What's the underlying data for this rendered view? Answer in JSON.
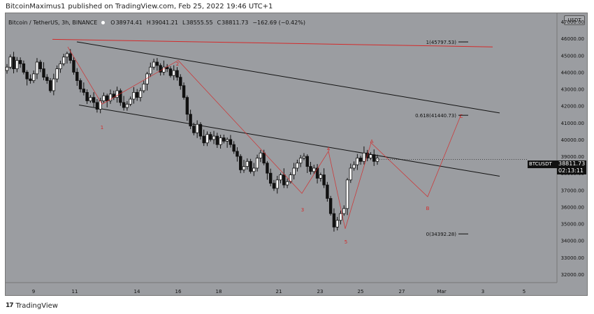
{
  "header": {
    "author": "BitcoinMaximus1",
    "published": "published on TradingView.com, Feb 25, 2022 19:46 UTC+1"
  },
  "legend": {
    "pair": "Bitcoin / TetherUS, 3h, BINANCE",
    "open_label": "O",
    "open": "38974.41",
    "high_label": "H",
    "high": "39041.21",
    "low_label": "L",
    "low": "38555.55",
    "close_label": "C",
    "close": "38811.73",
    "change": "−162.69 (−0.42%)"
  },
  "currency": "USDT",
  "symbol_tag": "BTCUSDT",
  "last_price": "38811.73",
  "countdown": "02:13:11",
  "footer": {
    "brand": "TradingView"
  },
  "colors": {
    "background": "#9b9da1",
    "candle": "#111111",
    "trendline": "#111111",
    "resistance": "#d42a2a",
    "wave": "#d42a2a"
  },
  "chart_data": {
    "type": "candlestick",
    "yaxis": {
      "ticks": [
        "47000.00",
        "46000.00",
        "45000.00",
        "44000.00",
        "43000.00",
        "42000.00",
        "41000.00",
        "40000.00",
        "39000.00",
        "38000.00",
        "37000.00",
        "36000.00",
        "35000.00",
        "34000.00",
        "33000.00",
        "32000.00"
      ],
      "range": [
        31500,
        47500
      ]
    },
    "xaxis": {
      "ticks": [
        "9",
        "11",
        "14",
        "16",
        "18",
        "21",
        "23",
        "25",
        "27",
        "Mar",
        "3",
        "5"
      ]
    },
    "fib_levels": [
      {
        "label": "1(45797.53)",
        "value": 45797.53
      },
      {
        "label": "0.618(41440.73)",
        "value": 41440.73
      },
      {
        "label": "0(34392.28)",
        "value": 34392.28
      }
    ],
    "wave_labels": [
      "1",
      "2",
      "3",
      "4",
      "5",
      "A",
      "B",
      "C"
    ],
    "close_path": [
      44300,
      44900,
      44200,
      44700,
      44500,
      44000,
      43600,
      43500,
      43900,
      44600,
      44200,
      43700,
      43500,
      42900,
      43600,
      44200,
      44500,
      44900,
      45100,
      44700,
      44000,
      43500,
      43000,
      42800,
      42300,
      42500,
      42200,
      41800,
      42300,
      42600,
      42300,
      42700,
      42500,
      42900,
      42200,
      41900,
      42100,
      42400,
      42800,
      42500,
      42900,
      43300,
      43900,
      44300,
      44600,
      44400,
      44000,
      44300,
      44200,
      43800,
      44100,
      43700,
      43200,
      42500,
      41500,
      40800,
      40400,
      40900,
      40200,
      39800,
      40300,
      40000,
      40200,
      39700,
      40100,
      39900,
      40000,
      39700,
      39300,
      39000,
      38200,
      38400,
      38700,
      38100,
      38300,
      38900,
      39200,
      38600,
      38000,
      37400,
      37100,
      37600,
      37900,
      37300,
      37500,
      37900,
      38300,
      38600,
      38900,
      39000,
      38400,
      38100,
      38300,
      37700,
      37900,
      37300,
      36500,
      35600,
      34800,
      35200,
      35600,
      35900,
      37600,
      38300,
      38500,
      38900,
      38700,
      39200,
      38900,
      39100,
      38700,
      38900
    ]
  }
}
